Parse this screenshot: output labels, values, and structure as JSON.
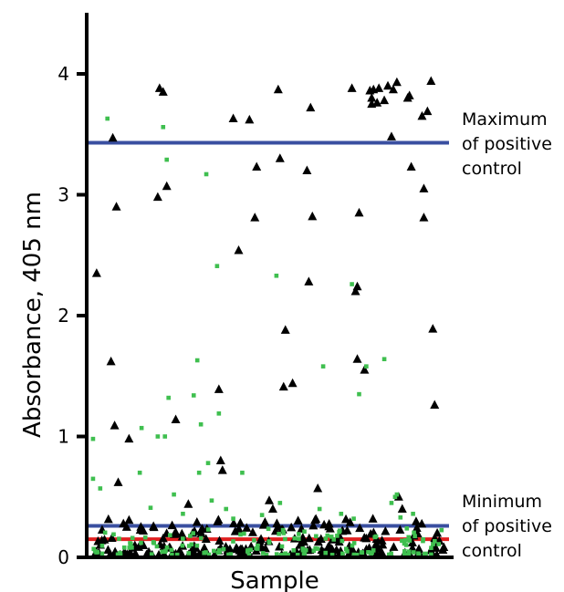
{
  "chart_data": {
    "type": "scatter",
    "xlabel": "Sample",
    "ylabel": "Absorbance, 405 nm",
    "ylim": [
      0,
      4.5
    ],
    "yticks": [
      0,
      1,
      2,
      3,
      4
    ],
    "x_range": [
      0,
      100
    ],
    "grid": false,
    "legend": "none",
    "reference_lines": [
      {
        "y": 3.43,
        "color": "#3a4fa0",
        "label": [
          "Maximum",
          "of positive",
          "control"
        ]
      },
      {
        "y": 0.26,
        "color": "#3a4fa0",
        "label": [
          "Minimum",
          "of positive",
          "control"
        ]
      },
      {
        "y": 0.15,
        "color": "#e02020",
        "label": []
      }
    ],
    "series": [
      {
        "marker": "triangle",
        "color": "#000000",
        "points": [
          [
            2,
            2.35
          ],
          [
            6,
            1.62
          ],
          [
            6.5,
            3.47
          ],
          [
            7,
            1.09
          ],
          [
            7.5,
            2.9
          ],
          [
            8,
            0.62
          ],
          [
            11,
            0.98
          ],
          [
            19,
            2.98
          ],
          [
            19.5,
            3.88
          ],
          [
            20.5,
            3.85
          ],
          [
            21.5,
            3.07
          ],
          [
            24,
            1.14
          ],
          [
            27.5,
            0.44
          ],
          [
            36,
            1.39
          ],
          [
            36.5,
            0.8
          ],
          [
            37,
            0.72
          ],
          [
            40,
            3.63
          ],
          [
            41.5,
            2.54
          ],
          [
            44.5,
            3.62
          ],
          [
            46,
            2.81
          ],
          [
            46.5,
            3.23
          ],
          [
            50,
            0.47
          ],
          [
            51,
            0.4
          ],
          [
            52.5,
            3.87
          ],
          [
            53,
            3.3
          ],
          [
            54,
            1.41
          ],
          [
            54.5,
            1.88
          ],
          [
            56.5,
            1.44
          ],
          [
            60.5,
            3.2
          ],
          [
            61,
            2.28
          ],
          [
            61.5,
            3.72
          ],
          [
            62,
            2.82
          ],
          [
            63.5,
            0.57
          ],
          [
            73,
            3.88
          ],
          [
            74,
            2.2
          ],
          [
            74.5,
            2.24
          ],
          [
            74.5,
            1.64
          ],
          [
            75,
            2.85
          ],
          [
            76.5,
            1.55
          ],
          [
            78,
            3.86
          ],
          [
            78.5,
            3.8
          ],
          [
            78.5,
            3.75
          ],
          [
            79,
            3.87
          ],
          [
            80,
            3.76
          ],
          [
            80.5,
            3.88
          ],
          [
            82,
            3.78
          ],
          [
            83,
            3.9
          ],
          [
            84,
            3.48
          ],
          [
            84.5,
            3.87
          ],
          [
            85.5,
            3.93
          ],
          [
            86,
            0.5
          ],
          [
            87,
            0.4
          ],
          [
            88.5,
            3.8
          ],
          [
            89,
            3.82
          ],
          [
            89.5,
            3.23
          ],
          [
            92.5,
            3.65
          ],
          [
            93,
            3.05
          ],
          [
            93,
            2.81
          ],
          [
            94,
            3.69
          ],
          [
            95,
            3.94
          ],
          [
            95.5,
            1.89
          ],
          [
            96,
            1.26
          ]
        ]
      },
      {
        "marker": "square",
        "color": "#3fbf4f",
        "points": [
          [
            1,
            0.98
          ],
          [
            1,
            0.65
          ],
          [
            3,
            0.57
          ],
          [
            5,
            3.63
          ],
          [
            14,
            0.7
          ],
          [
            14.5,
            1.07
          ],
          [
            17,
            0.41
          ],
          [
            19,
            1.0
          ],
          [
            20.5,
            3.56
          ],
          [
            21,
            1.0
          ],
          [
            21.5,
            3.29
          ],
          [
            22,
            1.32
          ],
          [
            23.5,
            0.52
          ],
          [
            26,
            0.36
          ],
          [
            29,
            1.34
          ],
          [
            30,
            1.63
          ],
          [
            30.5,
            0.7
          ],
          [
            31,
            1.1
          ],
          [
            32.5,
            3.17
          ],
          [
            33,
            0.78
          ],
          [
            34,
            0.47
          ],
          [
            35.5,
            2.41
          ],
          [
            36,
            1.19
          ],
          [
            38,
            0.4
          ],
          [
            40,
            0.32
          ],
          [
            42.5,
            0.7
          ],
          [
            48,
            0.35
          ],
          [
            52,
            2.33
          ],
          [
            53,
            0.45
          ],
          [
            54,
            0.2
          ],
          [
            64,
            0.4
          ],
          [
            65,
            1.58
          ],
          [
            70,
            0.36
          ],
          [
            73,
            2.26
          ],
          [
            73.5,
            0.32
          ],
          [
            75,
            1.35
          ],
          [
            77,
            1.58
          ],
          [
            82,
            1.64
          ],
          [
            84,
            0.45
          ],
          [
            85,
            0.5
          ],
          [
            85.5,
            0.52
          ],
          [
            86.5,
            0.33
          ],
          [
            90,
            0.36
          ]
        ]
      }
    ]
  }
}
